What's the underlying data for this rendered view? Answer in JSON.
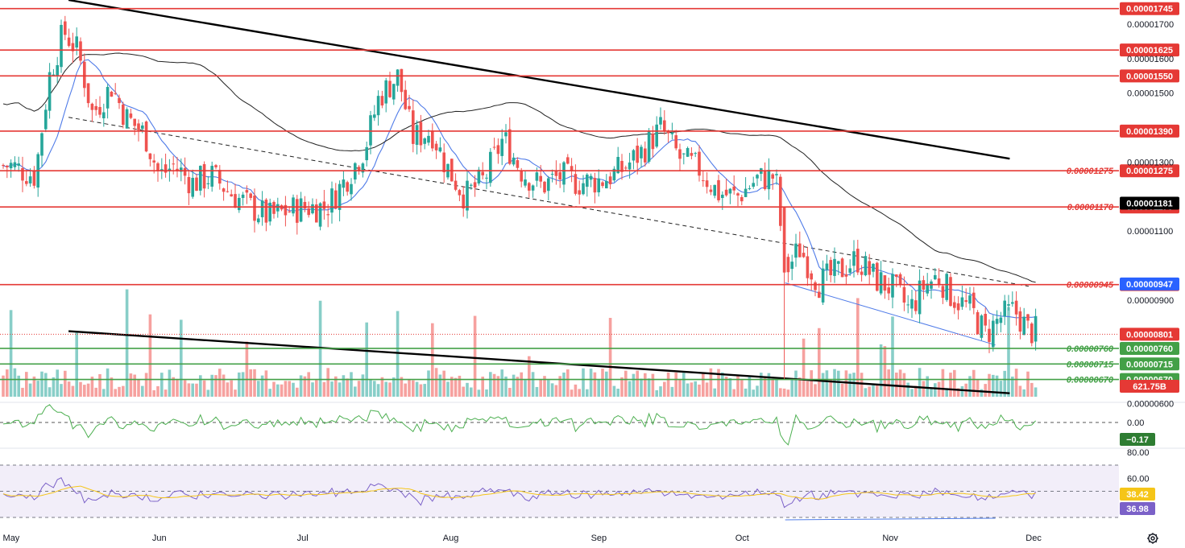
{
  "chart_data": {
    "type": "candlestick",
    "colors": {
      "up": "#26a69a",
      "down": "#ef5350",
      "level_red": "#e53935",
      "level_green": "#43a047",
      "ma_fast": "#4f7be8",
      "ma_slow": "#222222",
      "rsi": "#7b61c8",
      "rsi_ma": "#f5c518",
      "osc": "#4caf50"
    },
    "x_axis": {
      "labels": [
        "May",
        "Jun",
        "Jul",
        "Aug",
        "Sep",
        "Oct",
        "Nov",
        "Dec"
      ]
    },
    "y_axis": {
      "ylim": [
        6.2e-06,
        1.77e-05
      ],
      "ticks": [
        "0.00001700",
        "0.00001600",
        "0.00001500",
        "0.00001300",
        "0.00001100",
        "0.00000900",
        "0.00000600"
      ],
      "tick_values": [
        1.7e-05,
        1.6e-05,
        1.5e-05,
        1.3e-05,
        1.1e-05,
        9e-06,
        6e-06
      ]
    },
    "resistance_levels": [
      {
        "label": "0.00001745",
        "value": 1.745e-05,
        "side_label": ""
      },
      {
        "label": "0.00001625",
        "value": 1.625e-05,
        "side_label": ""
      },
      {
        "label": "0.00001550",
        "value": 1.55e-05,
        "side_label": ""
      },
      {
        "label": "0.00001390",
        "value": 1.39e-05,
        "side_label": ""
      },
      {
        "label": "0.00001275",
        "value": 1.275e-05,
        "side_label": "0.00001275"
      },
      {
        "label": "0.00001170",
        "value": 1.17e-05,
        "side_label": "0.00001170"
      },
      {
        "label": "0.00000945",
        "value": 9.45e-06,
        "side_label": "0.00000945"
      }
    ],
    "support_levels": [
      {
        "label": "0.00000760",
        "value": 7.6e-06,
        "side_label": "0.00000760"
      },
      {
        "label": "0.00000715",
        "value": 7.15e-06,
        "side_label": "0.00000715"
      },
      {
        "label": "0.00000670",
        "value": 6.7e-06,
        "side_label": "0.00000670"
      }
    ],
    "current_price": {
      "label": "0.00000801",
      "value": 8.01e-06
    },
    "ma_long_tag": {
      "label": "0.00001181",
      "value": 1.181e-05
    },
    "ma_short_tag": {
      "label": "0.00000947",
      "value": 9.47e-06
    },
    "volume_tag": "621.75B",
    "oscillator": {
      "zero_label": "0.00",
      "value_label": "−0.17",
      "value": -0.17
    },
    "rsi": {
      "ticks": [
        "80.00",
        "60.00"
      ],
      "ma_label": "38.42",
      "ma_value": 38.42,
      "value_label": "36.98",
      "value": 36.98,
      "upper": 70,
      "lower": 30
    },
    "trend_channel": {
      "upper": [
        [
          "2025-05-13",
          1.77e-05
        ],
        [
          "2025-11-26",
          1.31e-05
        ]
      ],
      "lower": [
        [
          "2025-05-13",
          8.1e-06
        ],
        [
          "2025-11-26",
          6.3e-06
        ]
      ],
      "mid_dashed": [
        [
          "2025-05-13",
          1.43e-05
        ],
        [
          "2025-11-30",
          9.4e-06
        ]
      ]
    },
    "price_path": [
      [
        "2025-05-01",
        1.29e-05
      ],
      [
        "2025-05-06",
        1.26e-05
      ],
      [
        "2025-05-09",
        1.55e-05
      ],
      [
        "2025-05-12",
        1.68e-05
      ],
      [
        "2025-05-15",
        1.62e-05
      ],
      [
        "2025-05-18",
        1.44e-05
      ],
      [
        "2025-05-22",
        1.52e-05
      ],
      [
        "2025-05-25",
        1.43e-05
      ],
      [
        "2025-05-29",
        1.38e-05
      ],
      [
        "2025-06-01",
        1.26e-05
      ],
      [
        "2025-06-04",
        1.29e-05
      ],
      [
        "2025-06-08",
        1.24e-05
      ],
      [
        "2025-06-12",
        1.26e-05
      ],
      [
        "2025-06-16",
        1.21e-05
      ],
      [
        "2025-06-20",
        1.17e-05
      ],
      [
        "2025-06-24",
        1.14e-05
      ],
      [
        "2025-06-28",
        1.16e-05
      ],
      [
        "2025-07-02",
        1.17e-05
      ],
      [
        "2025-07-06",
        1.17e-05
      ],
      [
        "2025-07-10",
        1.25e-05
      ],
      [
        "2025-07-14",
        1.34e-05
      ],
      [
        "2025-07-17",
        1.49e-05
      ],
      [
        "2025-07-21",
        1.55e-05
      ],
      [
        "2025-07-24",
        1.37e-05
      ],
      [
        "2025-07-28",
        1.39e-05
      ],
      [
        "2025-07-31",
        1.29e-05
      ],
      [
        "2025-08-04",
        1.2e-05
      ],
      [
        "2025-08-08",
        1.25e-05
      ],
      [
        "2025-08-12",
        1.37e-05
      ],
      [
        "2025-08-16",
        1.27e-05
      ],
      [
        "2025-08-20",
        1.23e-05
      ],
      [
        "2025-08-24",
        1.26e-05
      ],
      [
        "2025-08-28",
        1.24e-05
      ],
      [
        "2025-09-02",
        1.25e-05
      ],
      [
        "2025-09-06",
        1.28e-05
      ],
      [
        "2025-09-10",
        1.33e-05
      ],
      [
        "2025-09-14",
        1.4e-05
      ],
      [
        "2025-09-18",
        1.31e-05
      ],
      [
        "2025-09-22",
        1.28e-05
      ],
      [
        "2025-09-26",
        1.21e-05
      ],
      [
        "2025-09-30",
        1.2e-05
      ],
      [
        "2025-10-04",
        1.25e-05
      ],
      [
        "2025-10-08",
        1.26e-05
      ],
      [
        "2025-10-10",
        9.8e-06
      ],
      [
        "2025-10-13",
        1.05e-05
      ],
      [
        "2025-10-17",
        9.5e-06
      ],
      [
        "2025-10-21",
        9.8e-06
      ],
      [
        "2025-10-25",
        1.02e-05
      ],
      [
        "2025-10-29",
        9.6e-06
      ],
      [
        "2025-11-02",
        9.3e-06
      ],
      [
        "2025-11-05",
        8.7e-06
      ],
      [
        "2025-11-08",
        9.4e-06
      ],
      [
        "2025-11-11",
        9.7e-06
      ],
      [
        "2025-11-14",
        9.1e-06
      ],
      [
        "2025-11-18",
        8.7e-06
      ],
      [
        "2025-11-21",
        8e-06
      ],
      [
        "2025-11-24",
        8.5e-06
      ],
      [
        "2025-11-27",
        8.7e-06
      ],
      [
        "2025-11-30",
        8.1e-06
      ]
    ]
  }
}
